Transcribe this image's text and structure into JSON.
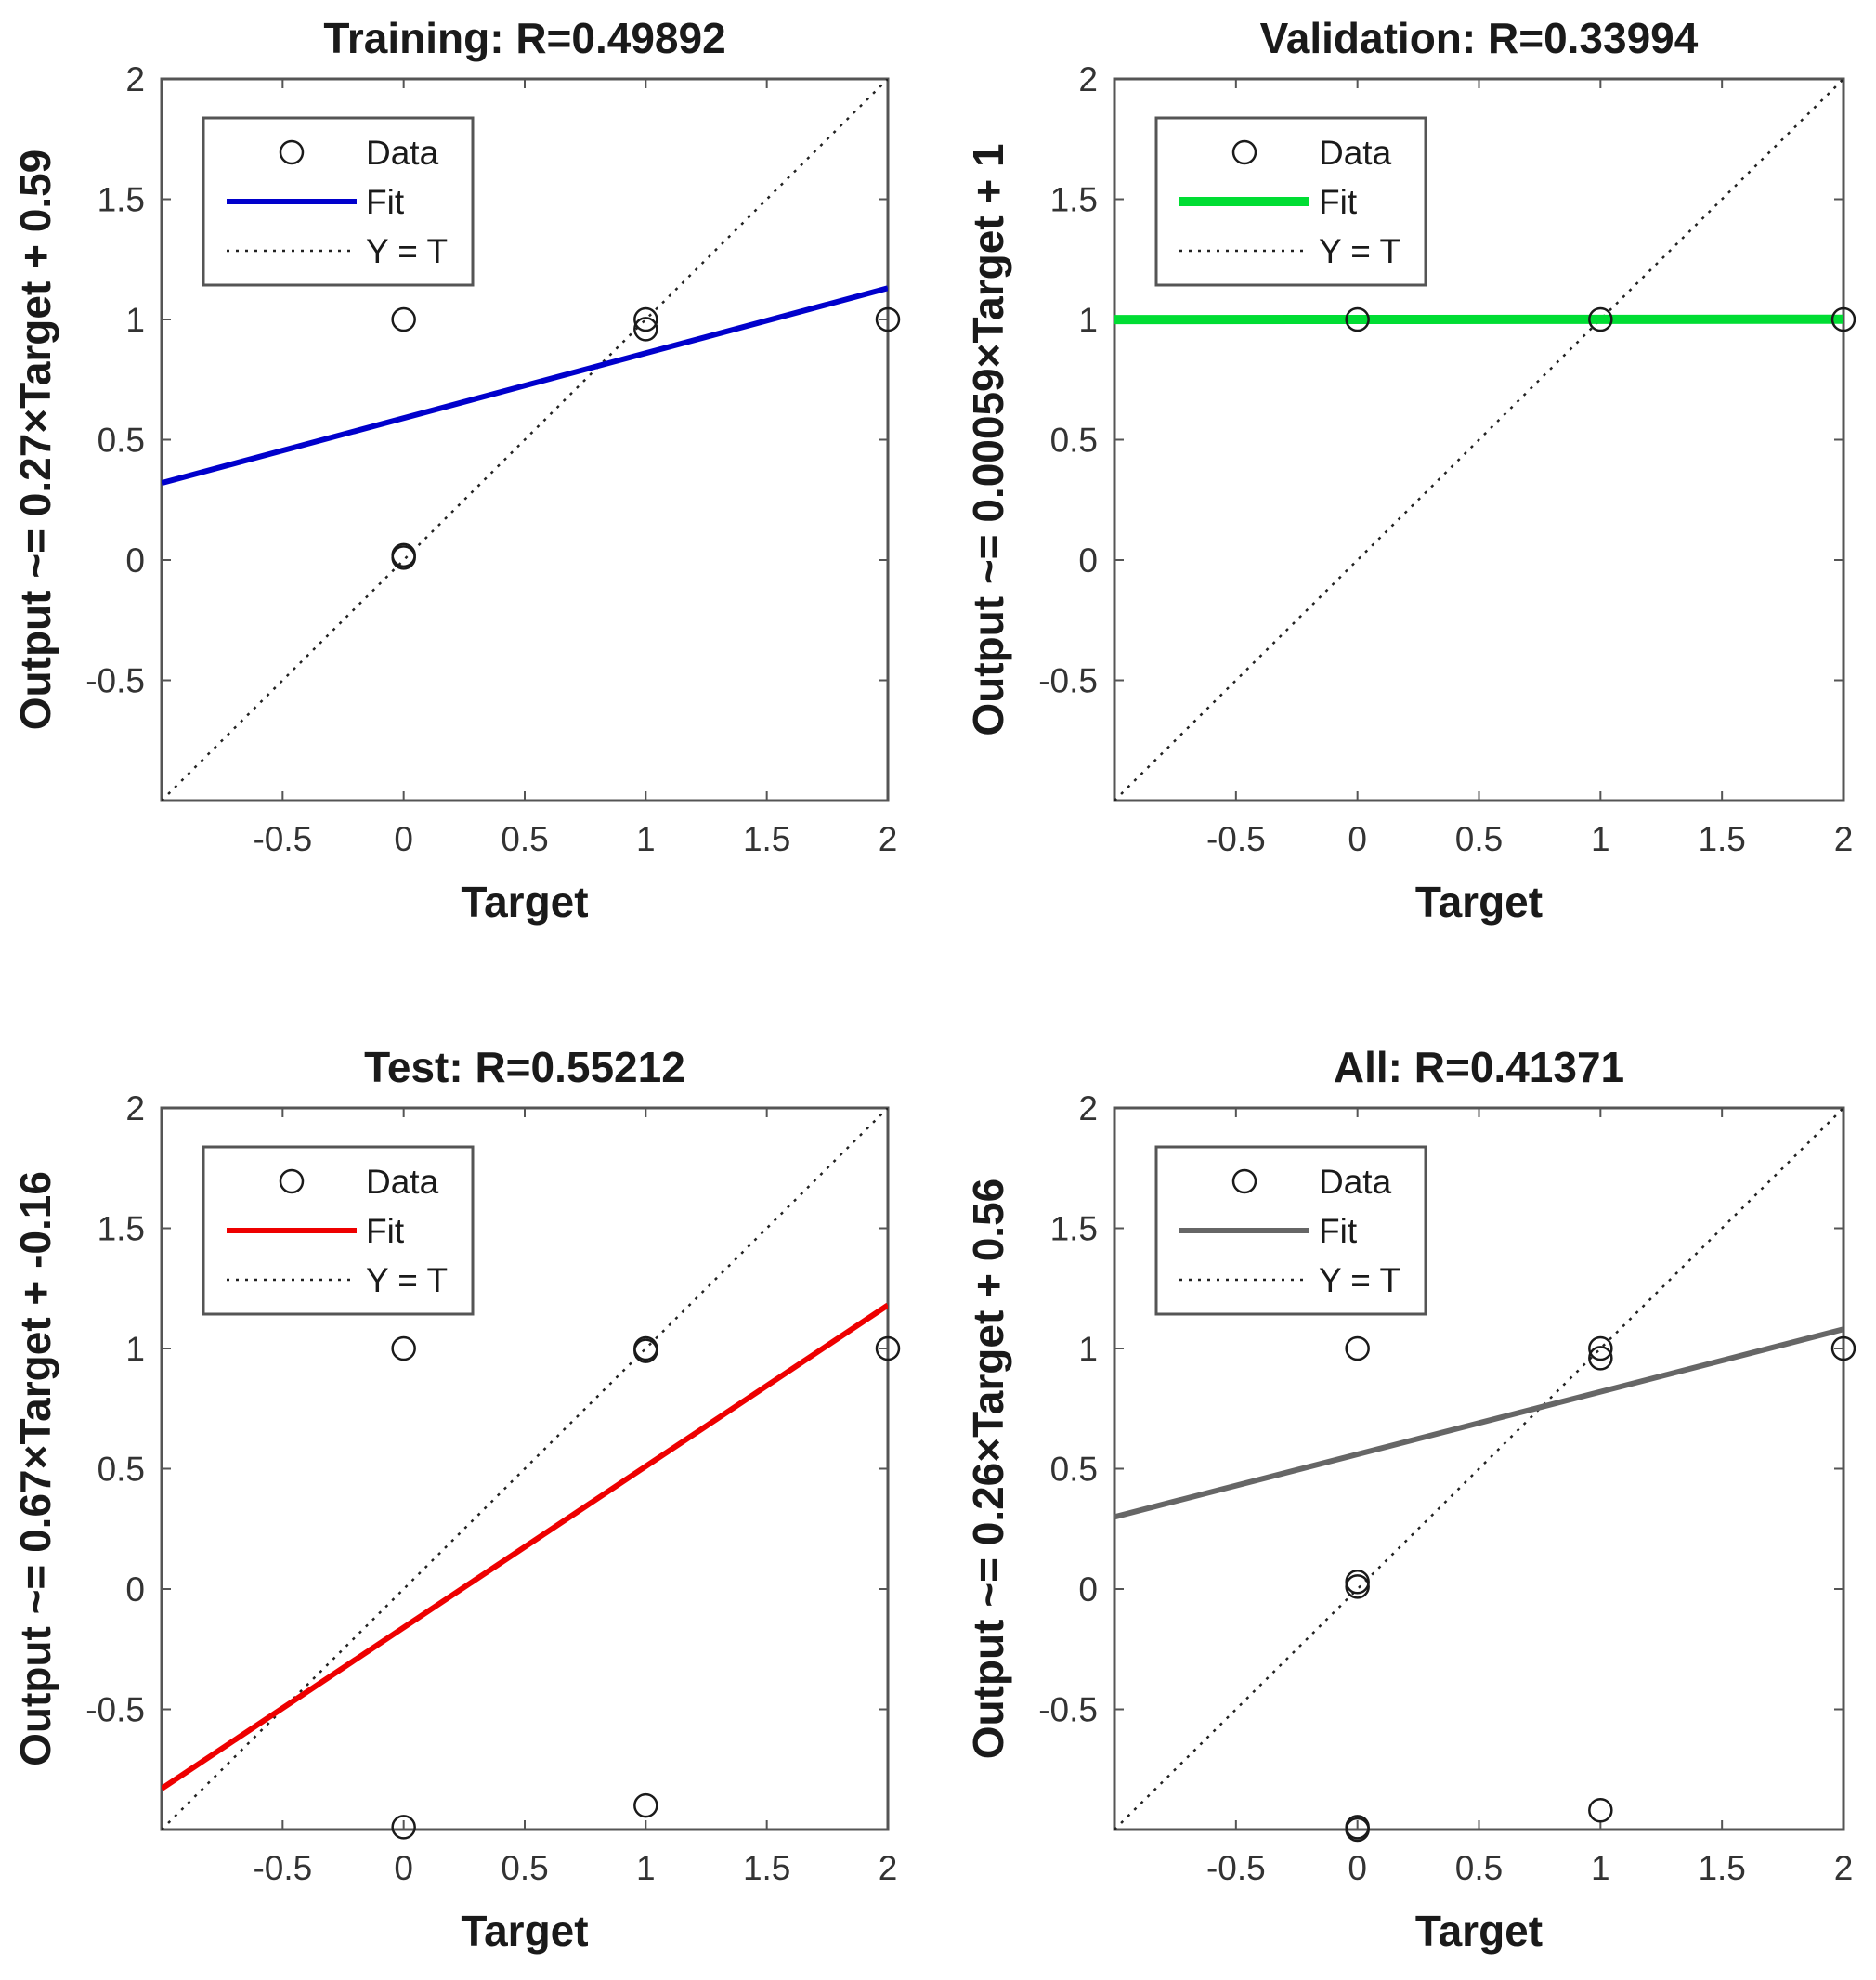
{
  "chart_data": [
    {
      "type": "scatter",
      "title": "Training: R=0.49892",
      "xlabel": "Target",
      "ylabel": "Output ~= 0.27×Target + 0.59",
      "xlim": [
        -1,
        2
      ],
      "ylim": [
        -1,
        2
      ],
      "xticks": [
        -0.5,
        0,
        0.5,
        1,
        1.5,
        2
      ],
      "yticks": [
        -0.5,
        0,
        0.5,
        1,
        1.5,
        2
      ],
      "tick_labels_x": [
        "-0.5",
        "0",
        "0.5",
        "1",
        "1.5",
        "2"
      ],
      "tick_labels_y": [
        "-0.5",
        "0",
        "0.5",
        "1",
        "1.5",
        "2"
      ],
      "fit": {
        "slope": 0.27,
        "intercept": 0.59,
        "color": "#0000cc"
      },
      "legend": [
        "Data",
        "Fit",
        "Y = T"
      ],
      "legend_position": "top-left",
      "points": [
        [
          0,
          1
        ],
        [
          0,
          0.02
        ],
        [
          0,
          0.01
        ],
        [
          1,
          1
        ],
        [
          1,
          0.96
        ],
        [
          2,
          1
        ]
      ]
    },
    {
      "type": "scatter",
      "title": "Validation: R=0.33994",
      "xlabel": "Target",
      "ylabel": "Output ~= 0.00059×Target + 1",
      "xlim": [
        -1,
        2
      ],
      "ylim": [
        -1,
        2
      ],
      "xticks": [
        -0.5,
        0,
        0.5,
        1,
        1.5,
        2
      ],
      "yticks": [
        -0.5,
        0,
        0.5,
        1,
        1.5,
        2
      ],
      "tick_labels_x": [
        "-0.5",
        "0",
        "0.5",
        "1",
        "1.5",
        "2"
      ],
      "tick_labels_y": [
        "-0.5",
        "0",
        "0.5",
        "1",
        "1.5",
        "2"
      ],
      "fit": {
        "slope": 0.00059,
        "intercept": 1,
        "color": "#00dd33"
      },
      "legend": [
        "Data",
        "Fit",
        "Y = T"
      ],
      "legend_position": "top-left",
      "points": [
        [
          0,
          1
        ],
        [
          1,
          1
        ],
        [
          2,
          1
        ]
      ]
    },
    {
      "type": "scatter",
      "title": "Test: R=0.55212",
      "xlabel": "Target",
      "ylabel": "Output ~= 0.67×Target + -0.16",
      "xlim": [
        -1,
        2
      ],
      "ylim": [
        -1,
        2
      ],
      "xticks": [
        -0.5,
        0,
        0.5,
        1,
        1.5,
        2
      ],
      "yticks": [
        -0.5,
        0,
        0.5,
        1,
        1.5,
        2
      ],
      "tick_labels_x": [
        "-0.5",
        "0",
        "0.5",
        "1",
        "1.5",
        "2"
      ],
      "tick_labels_y": [
        "-0.5",
        "0",
        "0.5",
        "1",
        "1.5",
        "2"
      ],
      "fit": {
        "slope": 0.67,
        "intercept": -0.16,
        "color": "#ee0000"
      },
      "legend": [
        "Data",
        "Fit",
        "Y = T"
      ],
      "legend_position": "top-left",
      "points": [
        [
          0,
          1
        ],
        [
          0,
          -0.99
        ],
        [
          1,
          1
        ],
        [
          1,
          0.99
        ],
        [
          1,
          -0.9
        ],
        [
          2,
          1
        ]
      ]
    },
    {
      "type": "scatter",
      "title": "All: R=0.41371",
      "xlabel": "Target",
      "ylabel": "Output ~= 0.26×Target + 0.56",
      "xlim": [
        -1,
        2
      ],
      "ylim": [
        -1,
        2
      ],
      "xticks": [
        -0.5,
        0,
        0.5,
        1,
        1.5,
        2
      ],
      "yticks": [
        -0.5,
        0,
        0.5,
        1,
        1.5,
        2
      ],
      "tick_labels_x": [
        "-0.5",
        "0",
        "0.5",
        "1",
        "1.5",
        "2"
      ],
      "tick_labels_y": [
        "-0.5",
        "0",
        "0.5",
        "1",
        "1.5",
        "2"
      ],
      "fit": {
        "slope": 0.26,
        "intercept": 0.56,
        "color": "#666666"
      },
      "legend": [
        "Data",
        "Fit",
        "Y = T"
      ],
      "legend_position": "top-left",
      "points": [
        [
          0,
          1
        ],
        [
          0,
          0.03
        ],
        [
          0,
          0.01
        ],
        [
          0,
          -0.99
        ],
        [
          0,
          -1.0
        ],
        [
          1,
          1
        ],
        [
          1,
          0.96
        ],
        [
          1,
          -0.92
        ],
        [
          2,
          1
        ]
      ]
    }
  ]
}
